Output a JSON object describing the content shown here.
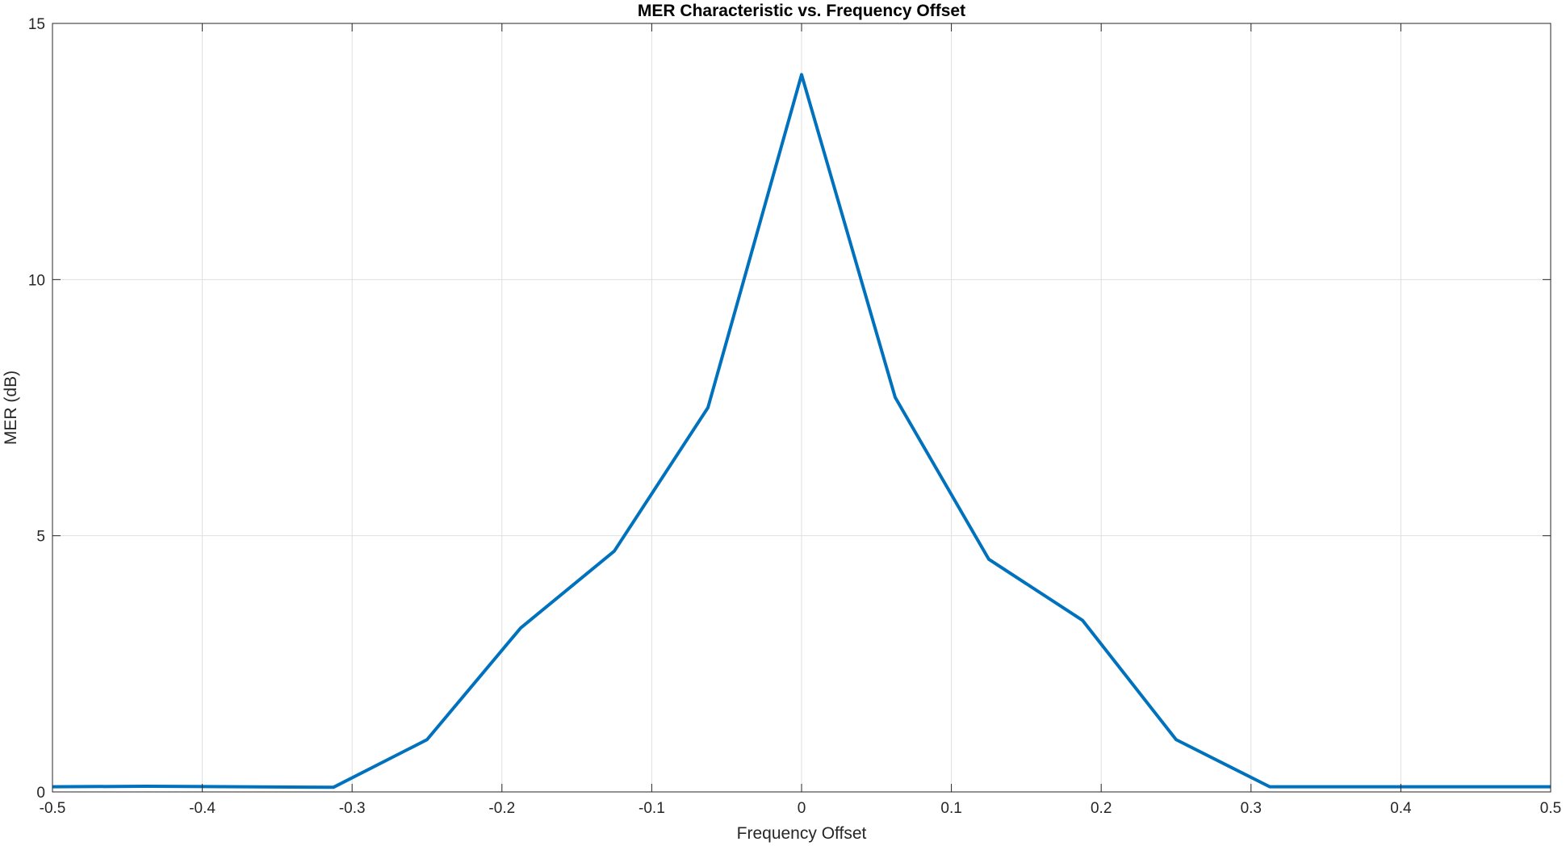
{
  "chart_data": {
    "type": "line",
    "title": "MER Characteristic vs. Frequency Offset",
    "xlabel": "Frequency Offset",
    "ylabel": "MER (dB)",
    "xlim": [
      -0.5,
      0.5
    ],
    "ylim": [
      0,
      15
    ],
    "xticks": [
      -0.5,
      -0.4,
      -0.3,
      -0.2,
      -0.1,
      0,
      0.1,
      0.2,
      0.3,
      0.4,
      0.5
    ],
    "xtick_labels": [
      "-0.5",
      "-0.4",
      "-0.3",
      "-0.2",
      "-0.1",
      "0",
      "0.1",
      "0.2",
      "0.3",
      "0.4",
      "0.5"
    ],
    "yticks": [
      0,
      5,
      10,
      15
    ],
    "ytick_labels": [
      "0",
      "5",
      "10",
      "15"
    ],
    "grid": true,
    "line_color": "#0072BD",
    "series": [
      {
        "x": [
          -0.5,
          -0.4375,
          -0.375,
          -0.3125,
          -0.25,
          -0.1875,
          -0.125,
          -0.0625,
          0,
          0.0625,
          0.125,
          0.1875,
          0.25,
          0.3125,
          0.375,
          0.4375,
          0.5
        ],
        "values": [
          0.1,
          0.11,
          0.1,
          0.09,
          1.02,
          3.2,
          4.7,
          7.5,
          14.0,
          7.7,
          4.54,
          3.35,
          1.02,
          0.1,
          0.1,
          0.1,
          0.1
        ]
      }
    ]
  }
}
